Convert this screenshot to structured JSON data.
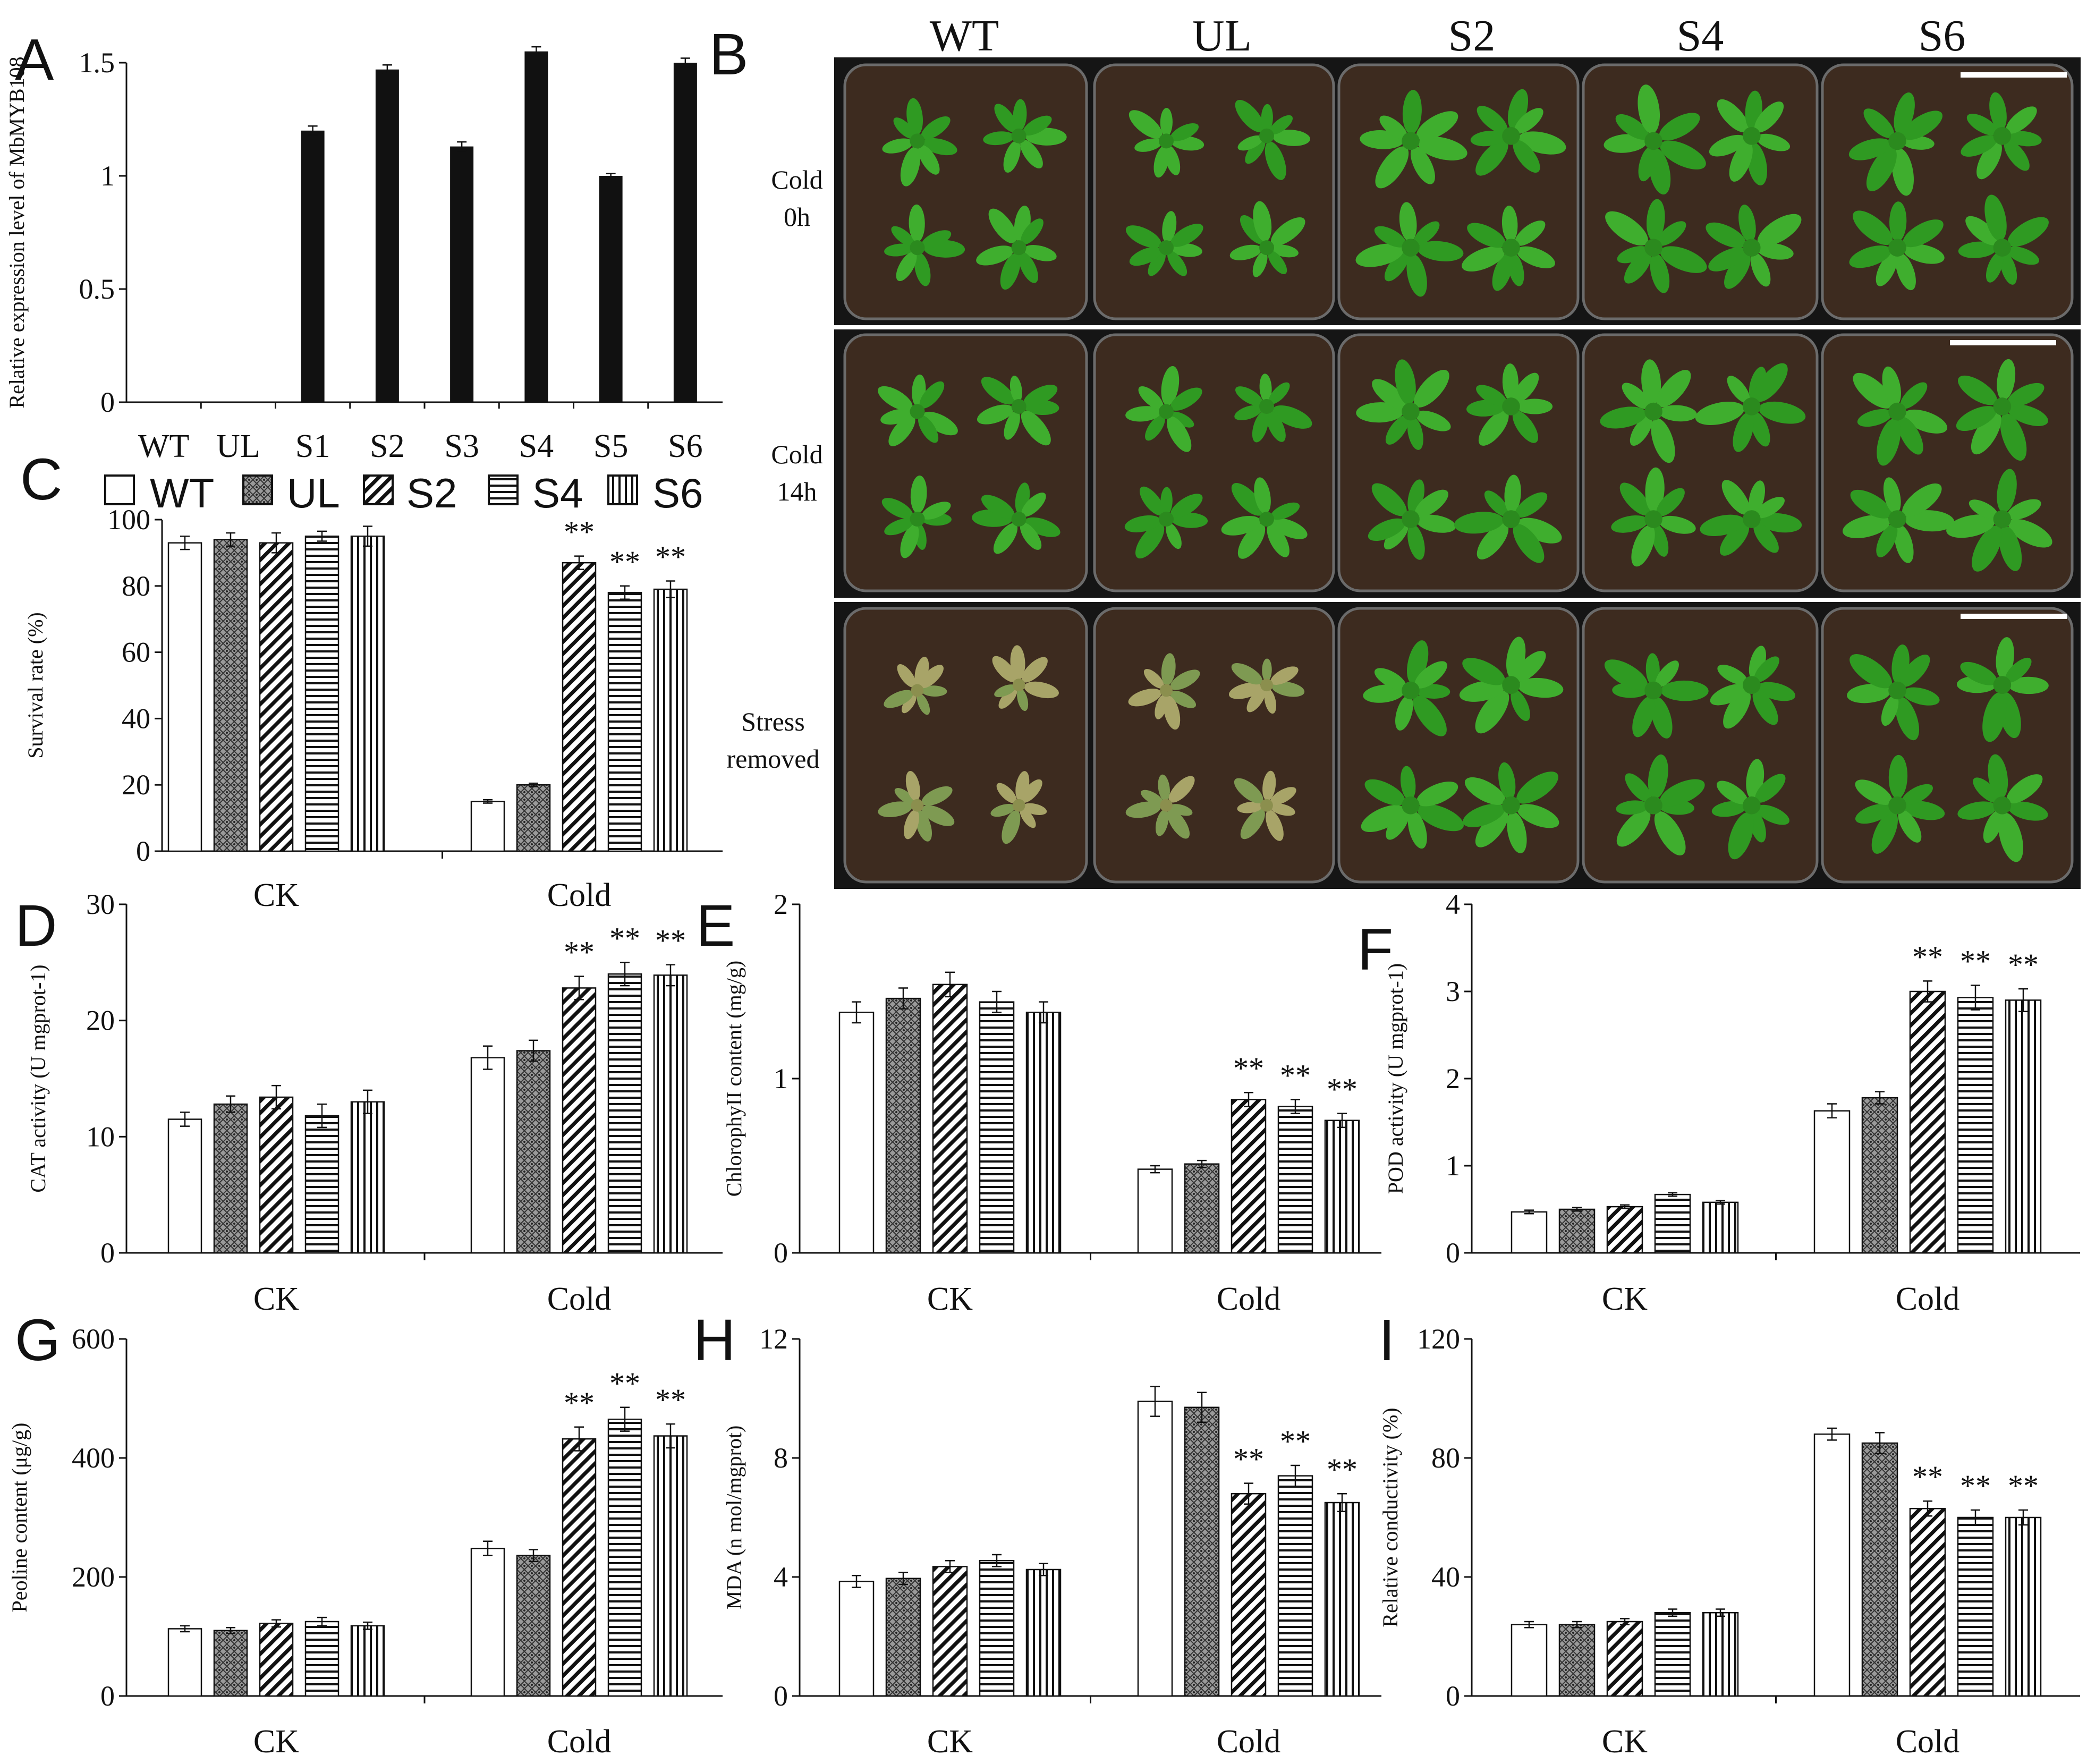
{
  "colors": {
    "axis": "#111111",
    "bar_fill": "#ffffff",
    "bar_stroke": "#111111",
    "soil": "#3d2b1f",
    "leaf": "#3fae2e",
    "photo_bg": "#151515"
  },
  "chart_data": [
    {
      "panel": "A",
      "type": "bar",
      "ylabel": "Relative expression level of MbMYB108",
      "categories": [
        "WT",
        "UL",
        "S1",
        "S2",
        "S3",
        "S4",
        "S5",
        "S6"
      ],
      "values": [
        0,
        0,
        1.2,
        1.47,
        1.13,
        1.55,
        1.0,
        1.5
      ],
      "errors": [
        0,
        0,
        0.02,
        0.02,
        0.02,
        0.02,
        0.01,
        0.02
      ],
      "ylim": [
        0,
        1.5
      ],
      "yticks": [
        "0",
        "0.5",
        "1",
        "1.5"
      ],
      "ytick_values": [
        0,
        0.5,
        1,
        1.5
      ],
      "grid": false
    },
    {
      "panel": "C",
      "type": "bar",
      "ylabel": "Survival rate (%)",
      "groups": [
        "CK",
        "Cold"
      ],
      "legend": [
        "WT",
        "UL",
        "S2",
        "S4",
        "S6"
      ],
      "legend_position": "top",
      "series": [
        {
          "name": "WT",
          "values": [
            93,
            15
          ],
          "errors": [
            2,
            0.5
          ]
        },
        {
          "name": "UL",
          "values": [
            94,
            20
          ],
          "errors": [
            2,
            0.5
          ]
        },
        {
          "name": "S2",
          "values": [
            93,
            87
          ],
          "errors": [
            3,
            2
          ]
        },
        {
          "name": "S4",
          "values": [
            95,
            78
          ],
          "errors": [
            1.5,
            2
          ]
        },
        {
          "name": "S6",
          "values": [
            95,
            79
          ],
          "errors": [
            3,
            2.5
          ]
        }
      ],
      "significance": [
        [
          "",
          "**"
        ],
        [
          "",
          "**"
        ],
        [
          "",
          "**"
        ]
      ],
      "sig_series": [
        2,
        3,
        4
      ],
      "ylim": [
        0,
        100
      ],
      "yticks": [
        "0",
        "20",
        "40",
        "60",
        "80",
        "100"
      ],
      "ytick_values": [
        0,
        20,
        40,
        60,
        80,
        100
      ]
    },
    {
      "panel": "D",
      "type": "bar",
      "ylabel": "CAT activity (U mgprot-1)",
      "groups": [
        "CK",
        "Cold"
      ],
      "series": [
        {
          "name": "WT",
          "values": [
            11.5,
            16.8
          ],
          "errors": [
            0.6,
            1.0
          ]
        },
        {
          "name": "UL",
          "values": [
            12.8,
            17.4
          ],
          "errors": [
            0.7,
            0.9
          ]
        },
        {
          "name": "S2",
          "values": [
            13.4,
            22.8
          ],
          "errors": [
            1.0,
            1.0
          ]
        },
        {
          "name": "S4",
          "values": [
            11.8,
            24.0
          ],
          "errors": [
            1.0,
            1.0
          ]
        },
        {
          "name": "S6",
          "values": [
            13.0,
            23.9
          ],
          "errors": [
            1.0,
            0.9
          ]
        }
      ],
      "sig_series": [
        2,
        3,
        4
      ],
      "sig_label": "**",
      "ylim": [
        0,
        30
      ],
      "yticks": [
        "0",
        "10",
        "20",
        "30"
      ],
      "ytick_values": [
        0,
        10,
        20,
        30
      ]
    },
    {
      "panel": "E",
      "type": "bar",
      "ylabel": "ChlorophyII content (mg/g)",
      "groups": [
        "CK",
        "Cold"
      ],
      "series": [
        {
          "name": "WT",
          "values": [
            1.38,
            0.48
          ],
          "errors": [
            0.06,
            0.02
          ]
        },
        {
          "name": "UL",
          "values": [
            1.46,
            0.51
          ],
          "errors": [
            0.06,
            0.02
          ]
        },
        {
          "name": "S2",
          "values": [
            1.54,
            0.88
          ],
          "errors": [
            0.07,
            0.04
          ]
        },
        {
          "name": "S4",
          "values": [
            1.44,
            0.84
          ],
          "errors": [
            0.06,
            0.04
          ]
        },
        {
          "name": "S6",
          "values": [
            1.38,
            0.76
          ],
          "errors": [
            0.06,
            0.04
          ]
        }
      ],
      "sig_series": [
        2,
        3,
        4
      ],
      "sig_label": "**",
      "ylim": [
        0,
        2
      ],
      "yticks": [
        "0",
        "1",
        "2"
      ],
      "ytick_values": [
        0,
        1,
        2
      ]
    },
    {
      "panel": "F",
      "type": "bar",
      "ylabel": "POD activity (U mgprot-1)",
      "groups": [
        "CK",
        "Cold"
      ],
      "series": [
        {
          "name": "WT",
          "values": [
            0.47,
            1.63
          ],
          "errors": [
            0.02,
            0.08
          ]
        },
        {
          "name": "UL",
          "values": [
            0.5,
            1.78
          ],
          "errors": [
            0.02,
            0.07
          ]
        },
        {
          "name": "S2",
          "values": [
            0.53,
            3.0
          ],
          "errors": [
            0.02,
            0.12
          ]
        },
        {
          "name": "S4",
          "values": [
            0.67,
            2.93
          ],
          "errors": [
            0.02,
            0.14
          ]
        },
        {
          "name": "S6",
          "values": [
            0.58,
            2.9
          ],
          "errors": [
            0.02,
            0.13
          ]
        }
      ],
      "sig_series": [
        2,
        3,
        4
      ],
      "sig_label": "**",
      "ylim": [
        0,
        4
      ],
      "yticks": [
        "0",
        "1",
        "2",
        "3",
        "4"
      ],
      "ytick_values": [
        0,
        1,
        2,
        3,
        4
      ]
    },
    {
      "panel": "G",
      "type": "bar",
      "ylabel": "Peoline content (μg/g)",
      "groups": [
        "CK",
        "Cold"
      ],
      "series": [
        {
          "name": "WT",
          "values": [
            113,
            248
          ],
          "errors": [
            5,
            12
          ]
        },
        {
          "name": "UL",
          "values": [
            110,
            236
          ],
          "errors": [
            5,
            10
          ]
        },
        {
          "name": "S2",
          "values": [
            122,
            432
          ],
          "errors": [
            6,
            20
          ]
        },
        {
          "name": "S4",
          "values": [
            125,
            465
          ],
          "errors": [
            7,
            20
          ]
        },
        {
          "name": "S6",
          "values": [
            118,
            437
          ],
          "errors": [
            6,
            20
          ]
        }
      ],
      "sig_series": [
        2,
        3,
        4
      ],
      "sig_label": "**",
      "ylim": [
        0,
        600
      ],
      "yticks": [
        "0",
        "200",
        "400",
        "600"
      ],
      "ytick_values": [
        0,
        200,
        400,
        600
      ]
    },
    {
      "panel": "H",
      "type": "bar",
      "ylabel": "MDA (n mol/mgprot)",
      "groups": [
        "CK",
        "Cold"
      ],
      "series": [
        {
          "name": "WT",
          "values": [
            3.85,
            9.9
          ],
          "errors": [
            0.2,
            0.5
          ]
        },
        {
          "name": "UL",
          "values": [
            3.95,
            9.7
          ],
          "errors": [
            0.2,
            0.5
          ]
        },
        {
          "name": "S2",
          "values": [
            4.35,
            6.8
          ],
          "errors": [
            0.2,
            0.35
          ]
        },
        {
          "name": "S4",
          "values": [
            4.55,
            7.4
          ],
          "errors": [
            0.2,
            0.35
          ]
        },
        {
          "name": "S6",
          "values": [
            4.25,
            6.5
          ],
          "errors": [
            0.2,
            0.3
          ]
        }
      ],
      "sig_series": [
        2,
        3,
        4
      ],
      "sig_label": "**",
      "ylim": [
        0,
        12
      ],
      "yticks": [
        "0",
        "4",
        "8",
        "12"
      ],
      "ytick_values": [
        0,
        4,
        8,
        12
      ]
    },
    {
      "panel": "I",
      "type": "bar",
      "ylabel": "Relative conductivity (%)",
      "groups": [
        "CK",
        "Cold"
      ],
      "series": [
        {
          "name": "WT",
          "values": [
            24,
            88
          ],
          "errors": [
            1,
            2
          ]
        },
        {
          "name": "UL",
          "values": [
            24,
            85
          ],
          "errors": [
            1,
            3.5
          ]
        },
        {
          "name": "S2",
          "values": [
            25,
            63
          ],
          "errors": [
            1,
            2.5
          ]
        },
        {
          "name": "S4",
          "values": [
            28,
            60
          ],
          "errors": [
            1.2,
            2.5
          ]
        },
        {
          "name": "S6",
          "values": [
            28,
            60
          ],
          "errors": [
            1.2,
            2.5
          ]
        }
      ],
      "sig_series": [
        2,
        3,
        4
      ],
      "sig_label": "**",
      "ylim": [
        0,
        120
      ],
      "yticks": [
        "0",
        "40",
        "80",
        "120"
      ],
      "ytick_values": [
        0,
        40,
        80,
        120
      ]
    }
  ],
  "photo": {
    "panel": "B",
    "columns": [
      "WT",
      "UL",
      "S2",
      "S4",
      "S6"
    ],
    "rows": [
      {
        "label_line1": "Cold",
        "label_line2": "0h",
        "condition": "healthy"
      },
      {
        "label_line1": "Cold",
        "label_line2": "14h",
        "condition": "healthy"
      },
      {
        "label_line1": "Stress",
        "label_line2": "removed",
        "condition": "recovery"
      }
    ]
  },
  "labels": {
    "A": "A",
    "B": "B",
    "C": "C",
    "D": "D",
    "E": "E",
    "F": "F",
    "G": "G",
    "H": "H",
    "I": "I"
  }
}
